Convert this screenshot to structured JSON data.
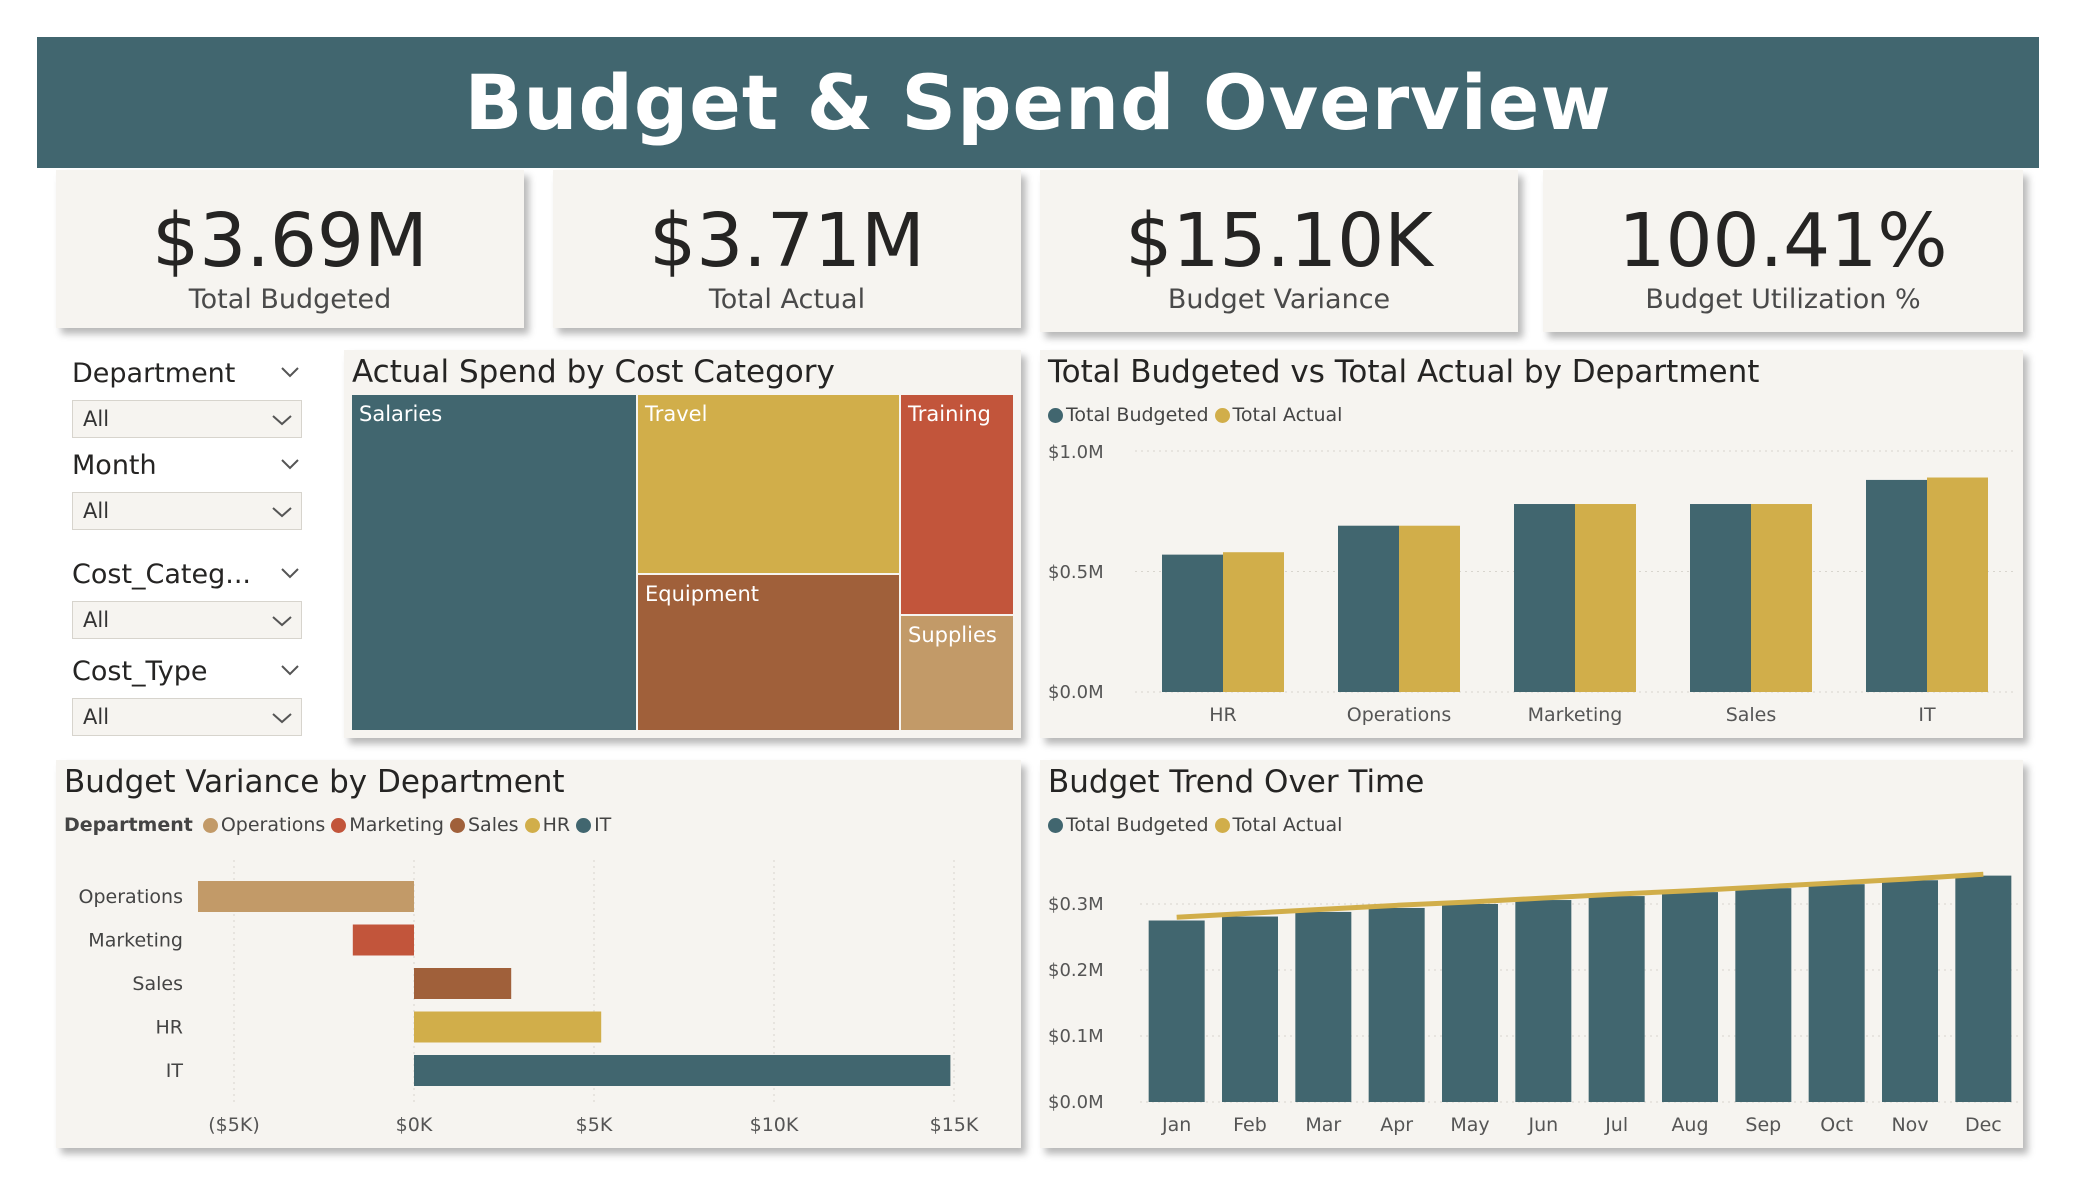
{
  "header": {
    "title": "Budget & Spend Overview"
  },
  "kpis": [
    {
      "value": "$3.69M",
      "label": "Total Budgeted"
    },
    {
      "value": "$3.71M",
      "label": "Total Actual"
    },
    {
      "value": "$15.10K",
      "label": "Budget Variance"
    },
    {
      "value": "100.41%",
      "label": "Budget Utilization %"
    }
  ],
  "slicers": [
    {
      "label": "Department",
      "value": "All"
    },
    {
      "label": "Month",
      "value": "All"
    },
    {
      "label": "Cost_Categ...",
      "value": "All"
    },
    {
      "label": "Cost_Type",
      "value": "All"
    }
  ],
  "colors": {
    "teal": "#41666f",
    "gold": "#d1ae4a",
    "red": "#c2553b",
    "brown": "#a0603a",
    "tan": "#c29a68",
    "panel": "#f6f4f0"
  },
  "treemap": {
    "title": "Actual Spend by Cost Category",
    "chart_data": {
      "type": "treemap",
      "categories": [
        "Salaries",
        "Travel",
        "Equipment",
        "Training",
        "Supplies"
      ]
    }
  },
  "dept_chart": {
    "title": "Total Budgeted vs Total Actual by Department",
    "legend": [
      "Total Budgeted",
      "Total Actual"
    ],
    "y_ticks": [
      "$0.0M",
      "$0.5M",
      "$1.0M"
    ],
    "chart_data": {
      "type": "bar",
      "categories": [
        "HR",
        "Operations",
        "Marketing",
        "Sales",
        "IT"
      ],
      "series": [
        {
          "name": "Total Budgeted",
          "values": [
            0.57,
            0.69,
            0.78,
            0.78,
            0.88
          ]
        },
        {
          "name": "Total Actual",
          "values": [
            0.58,
            0.69,
            0.78,
            0.78,
            0.89
          ]
        }
      ],
      "ylim": [
        0,
        1.0
      ]
    }
  },
  "variance_chart": {
    "title": "Budget Variance by Department",
    "legend_title": "Department",
    "legend": [
      "Operations",
      "Marketing",
      "Sales",
      "HR",
      "IT"
    ],
    "x_ticks": [
      "($5K)",
      "$0K",
      "$5K",
      "$10K",
      "$15K"
    ],
    "chart_data": {
      "type": "bar",
      "orientation": "horizontal",
      "categories": [
        "Operations",
        "Marketing",
        "Sales",
        "HR",
        "IT"
      ],
      "values": [
        -6.0,
        -1.7,
        2.7,
        5.2,
        14.9
      ],
      "xlim": [
        -5,
        15
      ]
    }
  },
  "trend_chart": {
    "title": "Budget Trend Over Time",
    "legend": [
      "Total Budgeted",
      "Total Actual"
    ],
    "y_ticks": [
      "$0.0M",
      "$0.1M",
      "$0.2M",
      "$0.3M"
    ],
    "chart_data": {
      "type": "bar",
      "categories": [
        "Jan",
        "Feb",
        "Mar",
        "Apr",
        "May",
        "Jun",
        "Jul",
        "Aug",
        "Sep",
        "Oct",
        "Nov",
        "Dec"
      ],
      "series": [
        {
          "name": "Total Budgeted",
          "values": [
            0.275,
            0.281,
            0.288,
            0.294,
            0.3,
            0.306,
            0.312,
            0.318,
            0.324,
            0.33,
            0.336,
            0.343
          ]
        },
        {
          "name": "Total Actual",
          "values": [
            0.28,
            0.286,
            0.292,
            0.298,
            0.303,
            0.309,
            0.315,
            0.32,
            0.326,
            0.332,
            0.338,
            0.345
          ]
        }
      ],
      "ylim": [
        0,
        0.35
      ]
    }
  }
}
